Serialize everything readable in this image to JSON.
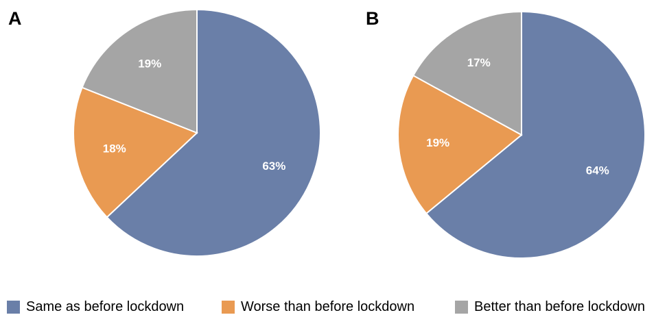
{
  "chart_data": [
    {
      "type": "pie",
      "panel_label": "A",
      "categories": [
        "Same as before lockdown",
        "Worse than before lockdown",
        "Better than before lockdown"
      ],
      "values": [
        63,
        18,
        19
      ],
      "value_labels": [
        "63%",
        "18%",
        "19%"
      ],
      "colors": [
        "#6a7fa8",
        "#e99a52",
        "#a5a5a5"
      ],
      "start_angle_deg": 0,
      "direction": "clockwise",
      "legend_position": "bottom"
    },
    {
      "type": "pie",
      "panel_label": "B",
      "categories": [
        "Same as before lockdown",
        "Worse than before lockdown",
        "Better than before lockdown"
      ],
      "values": [
        64,
        19,
        17
      ],
      "value_labels": [
        "64%",
        "19%",
        "17%"
      ],
      "colors": [
        "#6a7fa8",
        "#e99a52",
        "#a5a5a5"
      ],
      "start_angle_deg": 0,
      "direction": "clockwise",
      "legend_position": "bottom"
    }
  ],
  "legend": {
    "items": [
      {
        "label": "Same as before lockdown",
        "color": "#6a7fa8"
      },
      {
        "label": "Worse than before lockdown",
        "color": "#e99a52"
      },
      {
        "label": "Better than before lockdown",
        "color": "#a5a5a5"
      }
    ]
  }
}
